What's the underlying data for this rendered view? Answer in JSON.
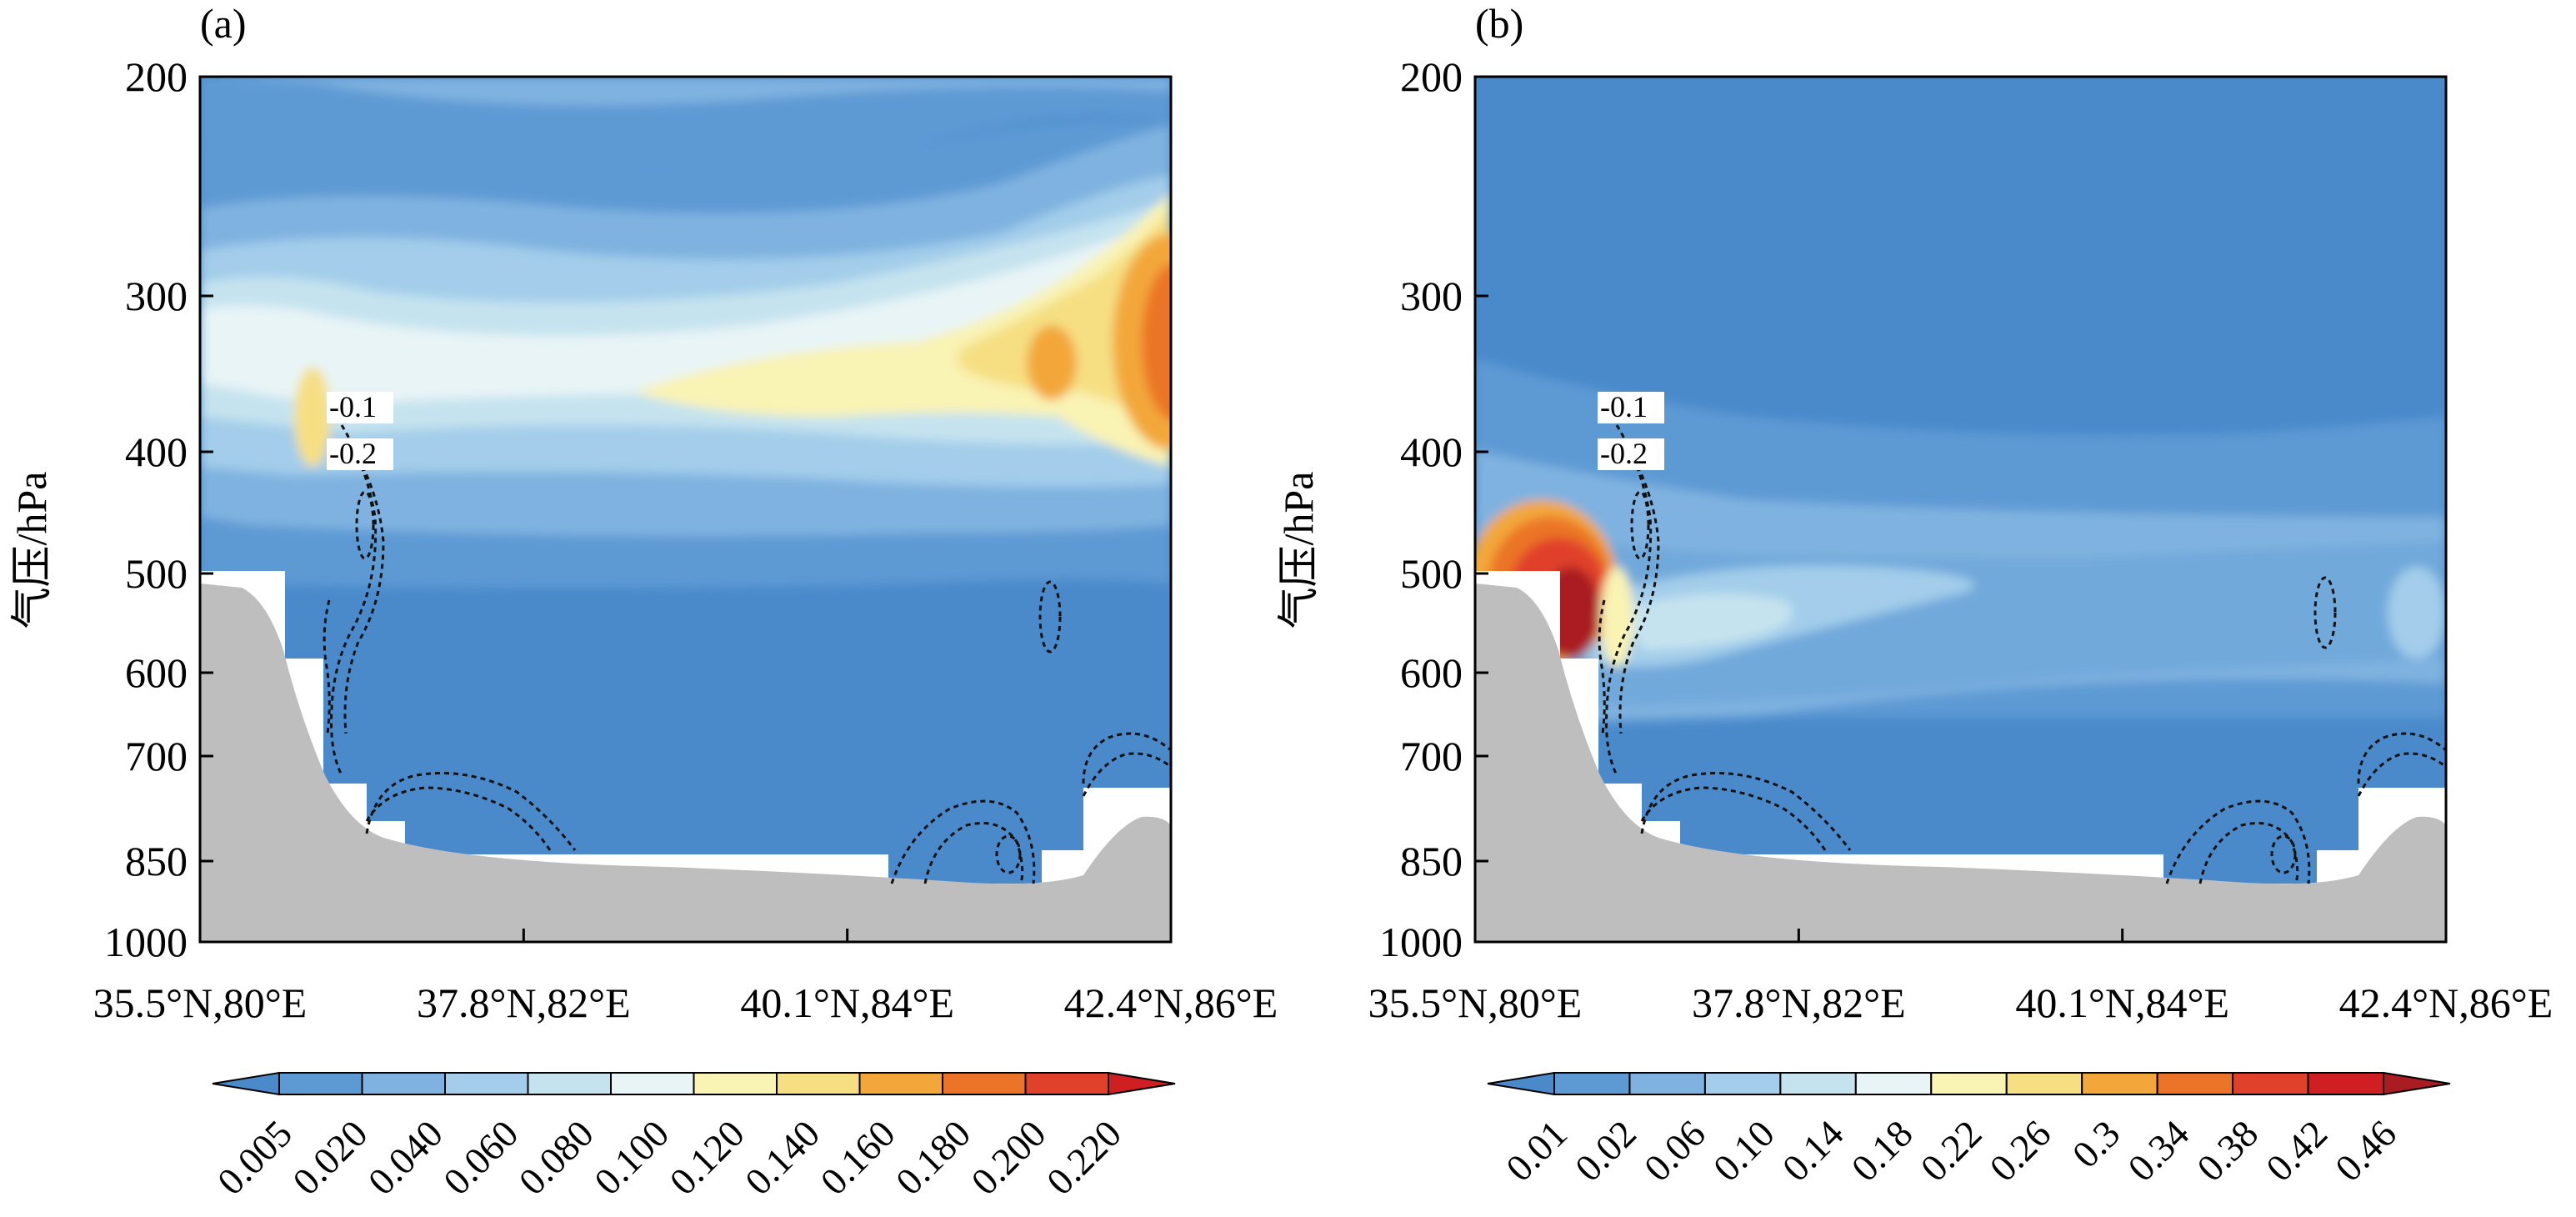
{
  "chart_data": [
    {
      "panel": "(a)",
      "type": "contour",
      "ylabel": "气压/hPa",
      "y_ticks": [
        "200",
        "300",
        "400",
        "500",
        "600",
        "700",
        "850",
        "1000"
      ],
      "x_ticks": [
        "35.5°N,80°E",
        "37.8°N,82°E",
        "40.1°N,84°E",
        "42.4°N,86°E"
      ],
      "colorbar_labels": [
        "0.005",
        "0.020",
        "0.040",
        "0.060",
        "0.080",
        "0.100",
        "0.120",
        "0.140",
        "0.160",
        "0.180",
        "0.200",
        "0.220"
      ],
      "colorbar_colors": [
        "#4a8acb",
        "#5d9ad4",
        "#7fb2e0",
        "#a3cdea",
        "#c5e3ef",
        "#e8f4f6",
        "#f9f3b4",
        "#f6df83",
        "#f3a73a",
        "#eb7428",
        "#e0412b",
        "#cf1f23"
      ],
      "contour_labels": [
        "-0.1",
        "-0.2"
      ]
    },
    {
      "panel": "(b)",
      "type": "contour",
      "ylabel": "气压/hPa",
      "y_ticks": [
        "200",
        "300",
        "400",
        "500",
        "600",
        "700",
        "850",
        "1000"
      ],
      "x_ticks": [
        "35.5°N,80°E",
        "37.8°N,82°E",
        "40.1°N,84°E",
        "42.4°N,86°E"
      ],
      "colorbar_labels": [
        "0.01",
        "0.02",
        "0.06",
        "0.10",
        "0.14",
        "0.18",
        "0.22",
        "0.26",
        "0.3",
        "0.34",
        "0.38",
        "0.42",
        "0.46"
      ],
      "colorbar_colors": [
        "#4a8acb",
        "#5d9ad4",
        "#7fb2e0",
        "#a3cdea",
        "#c5e3ef",
        "#e8f4f6",
        "#f9f3b4",
        "#f6df83",
        "#f3a73a",
        "#eb7428",
        "#e0412b",
        "#cf1f23",
        "#a81c22"
      ],
      "contour_labels": [
        "-0.1",
        "-0.2"
      ]
    }
  ]
}
